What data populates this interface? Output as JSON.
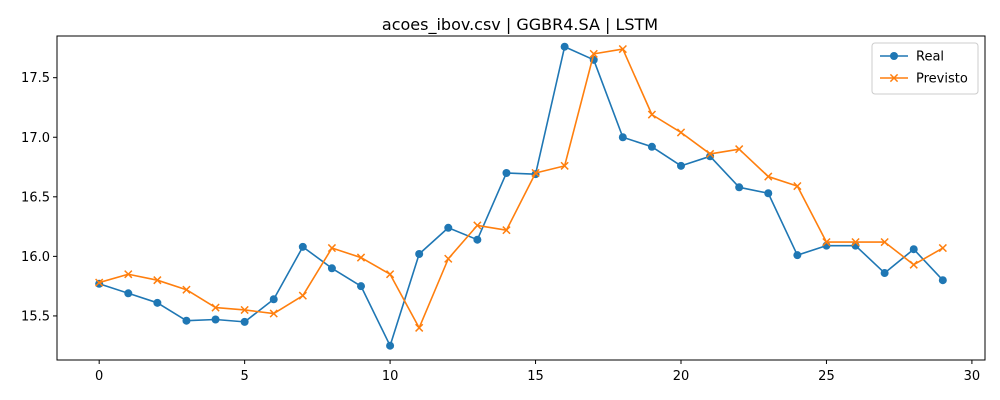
{
  "chart_data": {
    "type": "line",
    "title": "acoes_ibov.csv | GGBR4.SA | LSTM",
    "xlabel": "",
    "ylabel": "",
    "xlim": [
      -1.45,
      30.45
    ],
    "ylim": [
      15.13,
      17.85
    ],
    "xticks": [
      0,
      5,
      10,
      15,
      20,
      25,
      30
    ],
    "yticks": [
      15.5,
      16.0,
      16.5,
      17.0,
      17.5
    ],
    "ytick_labels": [
      "15.5",
      "16.0",
      "16.5",
      "17.0",
      "17.5"
    ],
    "grid": false,
    "legend_position": "top-right",
    "x": [
      0,
      1,
      2,
      3,
      4,
      5,
      6,
      7,
      8,
      9,
      10,
      11,
      12,
      13,
      14,
      15,
      16,
      17,
      18,
      19,
      20,
      21,
      22,
      23,
      24,
      25,
      26,
      27,
      28,
      29
    ],
    "series": [
      {
        "name": "Real",
        "color": "#1f77b4",
        "marker": "circle",
        "values": [
          15.77,
          15.69,
          15.61,
          15.46,
          15.47,
          15.45,
          15.64,
          16.08,
          15.9,
          15.75,
          15.25,
          16.02,
          16.24,
          16.14,
          16.7,
          16.69,
          17.76,
          17.65,
          17.0,
          16.92,
          16.76,
          16.84,
          16.58,
          16.53,
          16.01,
          16.09,
          16.09,
          15.86,
          16.06,
          15.8
        ]
      },
      {
        "name": "Previsto",
        "color": "#ff7f0e",
        "marker": "x",
        "values": [
          15.78,
          15.85,
          15.8,
          15.72,
          15.57,
          15.55,
          15.52,
          15.67,
          16.07,
          15.99,
          15.85,
          15.4,
          15.98,
          16.26,
          16.22,
          16.7,
          16.76,
          17.7,
          17.74,
          17.19,
          17.04,
          16.86,
          16.9,
          16.67,
          16.59,
          16.12,
          16.12,
          16.12,
          15.93,
          16.07
        ]
      }
    ]
  }
}
